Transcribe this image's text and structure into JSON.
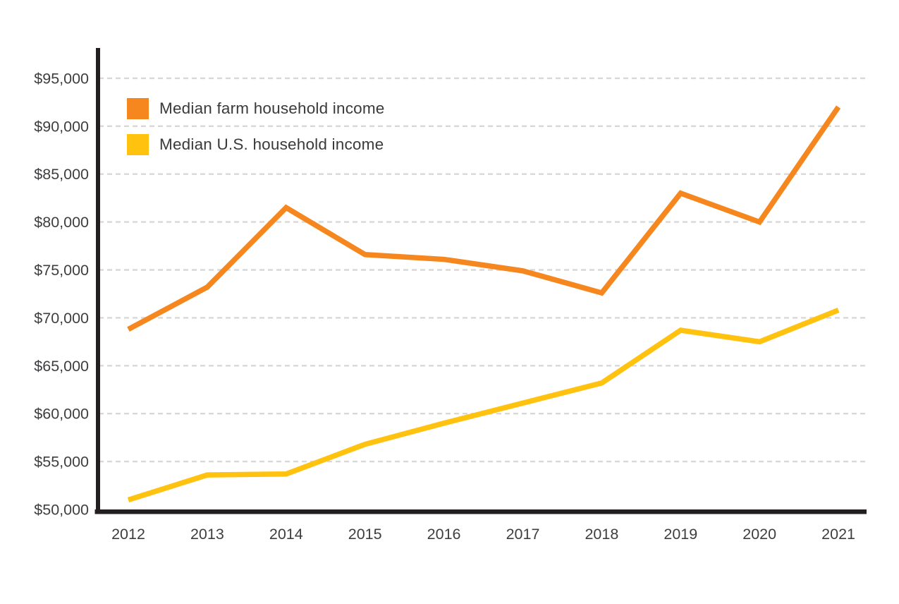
{
  "chart_data": {
    "type": "line",
    "title": "",
    "xlabel": "",
    "ylabel": "",
    "x": [
      "2012",
      "2013",
      "2014",
      "2015",
      "2016",
      "2017",
      "2018",
      "2019",
      "2020",
      "2021"
    ],
    "series": [
      {
        "name": "Median farm household income",
        "color": "#F6871F",
        "values": [
          68800,
          73200,
          81500,
          76600,
          76100,
          74900,
          72600,
          83000,
          80000,
          92000
        ]
      },
      {
        "name": "Median U.S. household income",
        "color": "#FFC20E",
        "values": [
          51000,
          53600,
          53700,
          56800,
          59000,
          61100,
          63200,
          68700,
          67500,
          70800
        ]
      }
    ],
    "ylim": [
      50000,
      95000
    ],
    "yticks": [
      50000,
      55000,
      60000,
      65000,
      70000,
      75000,
      80000,
      85000,
      90000,
      95000
    ],
    "ytick_labels": [
      "$50,000",
      "$55,000",
      "$60,000",
      "$65,000",
      "$70,000",
      "$75,000",
      "$80,000",
      "$85,000",
      "$90,000",
      "$95,000"
    ],
    "grid": "horizontal-dashed",
    "legend_position": "top-left-inside"
  },
  "legend": {
    "items": [
      {
        "label": "Median farm household income",
        "color": "#F6871F"
      },
      {
        "label": "Median U.S. household income",
        "color": "#FFC20E"
      }
    ]
  },
  "colors": {
    "background": "#FFFFFF",
    "axis": "#231F20",
    "gridline": "#D8D8D8",
    "text": "#3E3E40"
  }
}
